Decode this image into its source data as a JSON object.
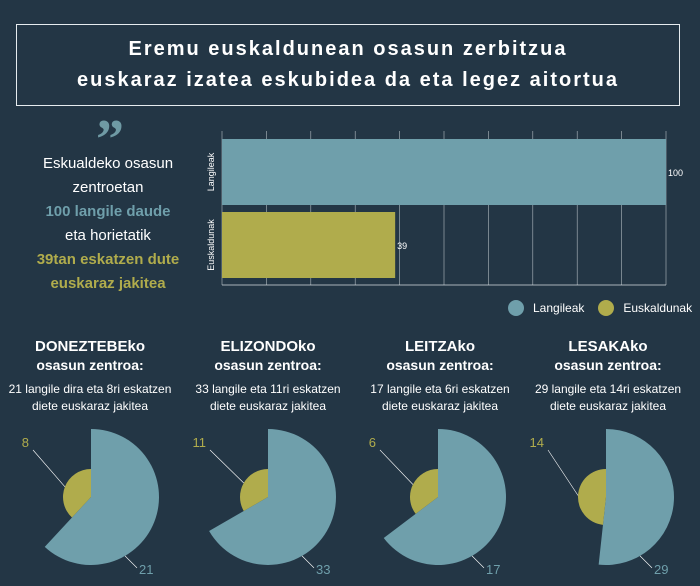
{
  "title": {
    "line1": "Eremu euskaldunean osasun zerbitzua",
    "line2": "euskaraz izatea eskubidea da eta legez aitortua"
  },
  "quote_mark": "”",
  "intro": {
    "line1": "Eskualdeko osasun",
    "line2": "zentroetan",
    "highlight1": "100 langile daude",
    "line3": "eta horietatik",
    "highlight2": "39tan eskatzen dute",
    "highlight3": "euskaraz jakitea"
  },
  "colors": {
    "background": "#233645",
    "teal": "#6f9fab",
    "olive": "#b0ac4c",
    "text": "#ffffff"
  },
  "legend": [
    "Langileak",
    "Euskaldunak"
  ],
  "centers": [
    {
      "name": "DONEZTEBEko",
      "subtitle": "osasun zentroa:",
      "desc1": "21 langile dira eta 8ri eskatzen",
      "desc2": "diete euskaraz jakitea"
    },
    {
      "name": "ELIZONDOko",
      "subtitle": "osasun zentroa:",
      "desc1": "33 langile eta 11ri eskatzen",
      "desc2": "diete euskaraz jakitea"
    },
    {
      "name": "LEITZAko",
      "subtitle": "osasun zentroa:",
      "desc1": "17 langile eta 6ri eskatzen",
      "desc2": "diete euskaraz jakitea"
    },
    {
      "name": "LESAKAko",
      "subtitle": "osasun zentroa:",
      "desc1": "29 langile eta 14ri eskatzen",
      "desc2": "diete euskaraz jakitea"
    }
  ],
  "chart_data": [
    {
      "type": "bar",
      "orientation": "horizontal",
      "categories": [
        "Langileak",
        "Euskaldunak"
      ],
      "values": [
        100,
        39
      ],
      "data_labels": [
        "100",
        "39"
      ],
      "colors": [
        "#6f9fab",
        "#b0ac4c"
      ],
      "xlim": [
        0,
        100
      ],
      "grid": true,
      "legend": "bottom-right"
    },
    {
      "type": "pie",
      "labels": [
        "Langileak",
        "Euskaldunak"
      ],
      "total": 21,
      "part": 8,
      "value_labels": [
        "21",
        "8"
      ]
    },
    {
      "type": "pie",
      "labels": [
        "Langileak",
        "Euskaldunak"
      ],
      "total": 33,
      "part": 11,
      "value_labels": [
        "33",
        "11"
      ]
    },
    {
      "type": "pie",
      "labels": [
        "Langileak",
        "Euskaldunak"
      ],
      "total": 17,
      "part": 6,
      "value_labels": [
        "17",
        "6"
      ]
    },
    {
      "type": "pie",
      "labels": [
        "Langileak",
        "Euskaldunak"
      ],
      "total": 29,
      "part": 14,
      "value_labels": [
        "29",
        "14"
      ]
    }
  ]
}
